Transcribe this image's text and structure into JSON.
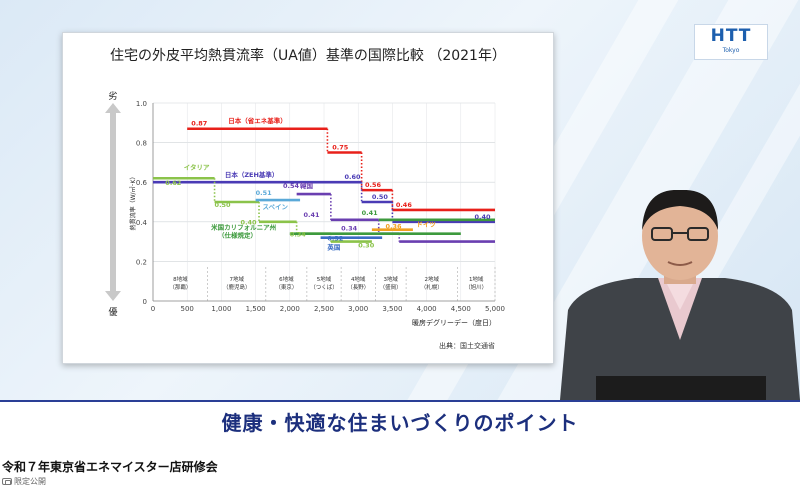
{
  "slide": {
    "title": "住宅の外皮平均熱貫流率（UA値）基準の国際比較 （2021年）",
    "source": "出典：国土交通省"
  },
  "logo": {
    "main": "HTT",
    "sub": "Tokyo"
  },
  "caption": "健康・快適な住まいづくりのポイント",
  "video_title": "令和７年東京省エネマイスター店研修会",
  "badge": "限定公開",
  "chart_data": {
    "type": "line",
    "xlabel": "暖房デグリーデー（度日）",
    "ylabel": "熱貫流率（W/㎡･K）",
    "y_top_label": "劣",
    "y_bottom_label": "優",
    "xlim": [
      0,
      5000
    ],
    "ylim": [
      0,
      1.0
    ],
    "x_ticks": [
      "0",
      "500",
      "1,000",
      "1,500",
      "2,000",
      "2,500",
      "3,000",
      "3,500",
      "4,000",
      "4,500",
      "5,000"
    ],
    "y_ticks": [
      "0",
      "0.2",
      "0.4",
      "0.6",
      "0.8",
      "1.0"
    ],
    "regions": [
      {
        "name": "8地域",
        "sub": "（那覇）",
        "x0": 0,
        "x1": 800
      },
      {
        "name": "7地域",
        "sub": "（鹿児島）",
        "x0": 800,
        "x1": 1650
      },
      {
        "name": "6地域",
        "sub": "（東京）",
        "x0": 1650,
        "x1": 2250
      },
      {
        "name": "5地域",
        "sub": "（つくば）",
        "x0": 2250,
        "x1": 2750
      },
      {
        "name": "4地域",
        "sub": "（長野）",
        "x0": 2750,
        "x1": 3250
      },
      {
        "name": "3地域",
        "sub": "（盛岡）",
        "x0": 3250,
        "x1": 3700
      },
      {
        "name": "2地域",
        "sub": "（札幌）",
        "x0": 3700,
        "x1": 4450
      },
      {
        "name": "1地域",
        "sub": "（旭川）",
        "x0": 4450,
        "x1": 5000
      }
    ],
    "series": [
      {
        "name": "日本（省エネ基準）",
        "color": "#e8201a",
        "steps": [
          [
            500,
            2550,
            0.87
          ],
          [
            2550,
            3050,
            0.75
          ],
          [
            3050,
            3500,
            0.56
          ],
          [
            3500,
            5000,
            0.46
          ]
        ]
      },
      {
        "name": "日本（ZEH基準）",
        "color": "#4a3bb5",
        "steps": [
          [
            0,
            3050,
            0.6
          ],
          [
            3050,
            3500,
            0.5
          ],
          [
            3500,
            5000,
            0.4
          ]
        ]
      },
      {
        "name": "イタリア",
        "color": "#8bc34a",
        "steps": [
          [
            0,
            900,
            0.62
          ],
          [
            900,
            1550,
            0.5
          ],
          [
            1550,
            2100,
            0.4
          ],
          [
            2100,
            2600,
            0.34
          ],
          [
            2600,
            3200,
            0.3
          ]
        ]
      },
      {
        "name": "スペイン",
        "color": "#5aa9d8",
        "steps": [
          [
            1500,
            2150,
            0.51
          ]
        ]
      },
      {
        "name": "韓国",
        "color": "#6a3fb0",
        "steps": [
          [
            2100,
            2600,
            0.54
          ],
          [
            2600,
            3300,
            0.41
          ],
          [
            3300,
            3600,
            0.34
          ],
          [
            3600,
            5000,
            0.3
          ]
        ]
      },
      {
        "name": "米国カリフォルニア州（仕様規定）",
        "color": "#3d9a3d",
        "steps": [
          [
            2000,
            4500,
            0.34
          ],
          [
            3300,
            5000,
            0.41
          ]
        ]
      },
      {
        "name": "英国",
        "color": "#3a6cc4",
        "steps": [
          [
            2450,
            3350,
            0.32
          ]
        ]
      },
      {
        "name": "ドイツ",
        "color": "#f0a020",
        "steps": [
          [
            3200,
            3800,
            0.36
          ]
        ]
      }
    ],
    "labels": [
      {
        "text": "0.87",
        "x": 560,
        "y": 0.87,
        "color": "#e8201a"
      },
      {
        "text": "日本（省エネ基準）",
        "x": 1100,
        "y": 0.885,
        "color": "#e8201a"
      },
      {
        "text": "0.75",
        "x": 2620,
        "y": 0.75,
        "color": "#e8201a"
      },
      {
        "text": "0.60",
        "x": 2800,
        "y": 0.6,
        "color": "#4a3bb5"
      },
      {
        "text": "日本（ZEH基準）",
        "x": 1050,
        "y": 0.61,
        "color": "#4a3bb5"
      },
      {
        "text": "0.56",
        "x": 3100,
        "y": 0.56,
        "color": "#e8201a"
      },
      {
        "text": "0.50",
        "x": 3200,
        "y": 0.5,
        "color": "#4a3bb5"
      },
      {
        "text": "0.46",
        "x": 3550,
        "y": 0.46,
        "color": "#e8201a"
      },
      {
        "text": "0.40",
        "x": 4700,
        "y": 0.4,
        "color": "#4a3bb5"
      },
      {
        "text": "イタリア",
        "x": 450,
        "y": 0.65,
        "color": "#8bc34a"
      },
      {
        "text": "0.62",
        "x": 180,
        "y": 0.57,
        "color": "#8bc34a"
      },
      {
        "text": "0.50",
        "x": 900,
        "y": 0.46,
        "color": "#8bc34a"
      },
      {
        "text": "0.40",
        "x": 1280,
        "y": 0.37,
        "color": "#8bc34a"
      },
      {
        "text": "0.51",
        "x": 1500,
        "y": 0.52,
        "color": "#5aa9d8"
      },
      {
        "text": "スペイン",
        "x": 1600,
        "y": 0.45,
        "color": "#5aa9d8"
      },
      {
        "text": "0.54",
        "x": 1900,
        "y": 0.555,
        "color": "#6a3fb0"
      },
      {
        "text": "韓国",
        "x": 2150,
        "y": 0.555,
        "color": "#6a3fb0"
      },
      {
        "text": "0.41",
        "x": 2200,
        "y": 0.41,
        "color": "#6a3fb0"
      },
      {
        "text": "0.41",
        "x": 3050,
        "y": 0.42,
        "color": "#3d9a3d"
      },
      {
        "text": "0.34",
        "x": 2750,
        "y": 0.34,
        "color": "#6a3fb0"
      },
      {
        "text": "0.34",
        "x": 2000,
        "y": 0.31,
        "color": "#8bc34a"
      },
      {
        "text": "米国カリフォルニア州",
        "x": 850,
        "y": 0.345,
        "color": "#3d9a3d"
      },
      {
        "text": "（仕様規定）",
        "x": 950,
        "y": 0.305,
        "color": "#3d9a3d"
      },
      {
        "text": "0.32",
        "x": 2550,
        "y": 0.29,
        "color": "#3a6cc4"
      },
      {
        "text": "英国",
        "x": 2550,
        "y": 0.245,
        "color": "#3a6cc4"
      },
      {
        "text": "0.36",
        "x": 3400,
        "y": 0.35,
        "color": "#f0a020"
      },
      {
        "text": "ドイツ",
        "x": 3850,
        "y": 0.36,
        "color": "#f0a020"
      },
      {
        "text": "0.30",
        "x": 3000,
        "y": 0.255,
        "color": "#8bc34a"
      }
    ]
  }
}
